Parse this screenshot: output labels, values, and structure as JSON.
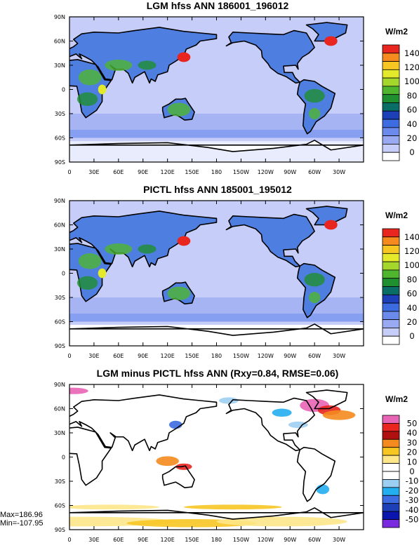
{
  "panels": [
    {
      "title": "LGM hfss ANN 186001_196012",
      "units": "W/m2",
      "lat_ticks": [
        "90N",
        "60N",
        "30N",
        "0",
        "30S",
        "60S",
        "90S"
      ],
      "lon_ticks": [
        "0",
        "30E",
        "60E",
        "90E",
        "120E",
        "150E",
        "180",
        "150W",
        "120W",
        "90W",
        "60W",
        "30W"
      ],
      "colorbar_labels": [
        "140",
        "120",
        "100",
        "80",
        "60",
        "40",
        "20",
        "0"
      ],
      "colorbar_colors": [
        "#e8251f",
        "#f58a1e",
        "#f7c623",
        "#e4ea2b",
        "#a5d62b",
        "#4fb52f",
        "#1f8f2f",
        "#0a6e66",
        "#1d3fb8",
        "#3c6ce0",
        "#6b8bec",
        "#9aaaf2",
        "#c6cdf8",
        "#ffffff"
      ]
    },
    {
      "title": "PICTL hfss ANN 185001_195012",
      "units": "W/m2",
      "lat_ticks": [
        "90N",
        "60N",
        "30N",
        "0",
        "30S",
        "60S",
        "90S"
      ],
      "lon_ticks": [
        "0",
        "30E",
        "60E",
        "90E",
        "120E",
        "150E",
        "180",
        "150W",
        "120W",
        "90W",
        "60W",
        "30W"
      ],
      "colorbar_labels": [
        "140",
        "120",
        "100",
        "80",
        "60",
        "40",
        "20",
        "0"
      ],
      "colorbar_colors": [
        "#e8251f",
        "#f58a1e",
        "#f7c623",
        "#e4ea2b",
        "#a5d62b",
        "#4fb52f",
        "#1f8f2f",
        "#0a6e66",
        "#1d3fb8",
        "#3c6ce0",
        "#6b8bec",
        "#9aaaf2",
        "#c6cdf8",
        "#ffffff"
      ]
    },
    {
      "title": "LGM minus PICTL hfss ANN (Rxy=0.84, RMSE=0.06)",
      "units": "W/m2",
      "lat_ticks": [
        "90N",
        "60N",
        "30N",
        "0",
        "30S",
        "60S",
        "90S"
      ],
      "lon_ticks": [
        "0",
        "30E",
        "60E",
        "90E",
        "120E",
        "150E",
        "180",
        "150W",
        "120W",
        "90W",
        "60W",
        "30W"
      ],
      "colorbar_labels": [
        "50",
        "40",
        "30",
        "20",
        "10",
        "0",
        "-10",
        "-20",
        "-30",
        "-40",
        "-50"
      ],
      "colorbar_colors": [
        "#e864b4",
        "#e8251f",
        "#b01010",
        "#f58a1e",
        "#f7c623",
        "#fde78a",
        "#ffffff",
        "#ffffff",
        "#9dcff2",
        "#23aef0",
        "#3c6ce0",
        "#1d3fb8",
        "#0a15b0",
        "#7a2be0"
      ],
      "stats": {
        "max": "Max=186.96",
        "min": "Min=-107.95"
      }
    }
  ]
}
